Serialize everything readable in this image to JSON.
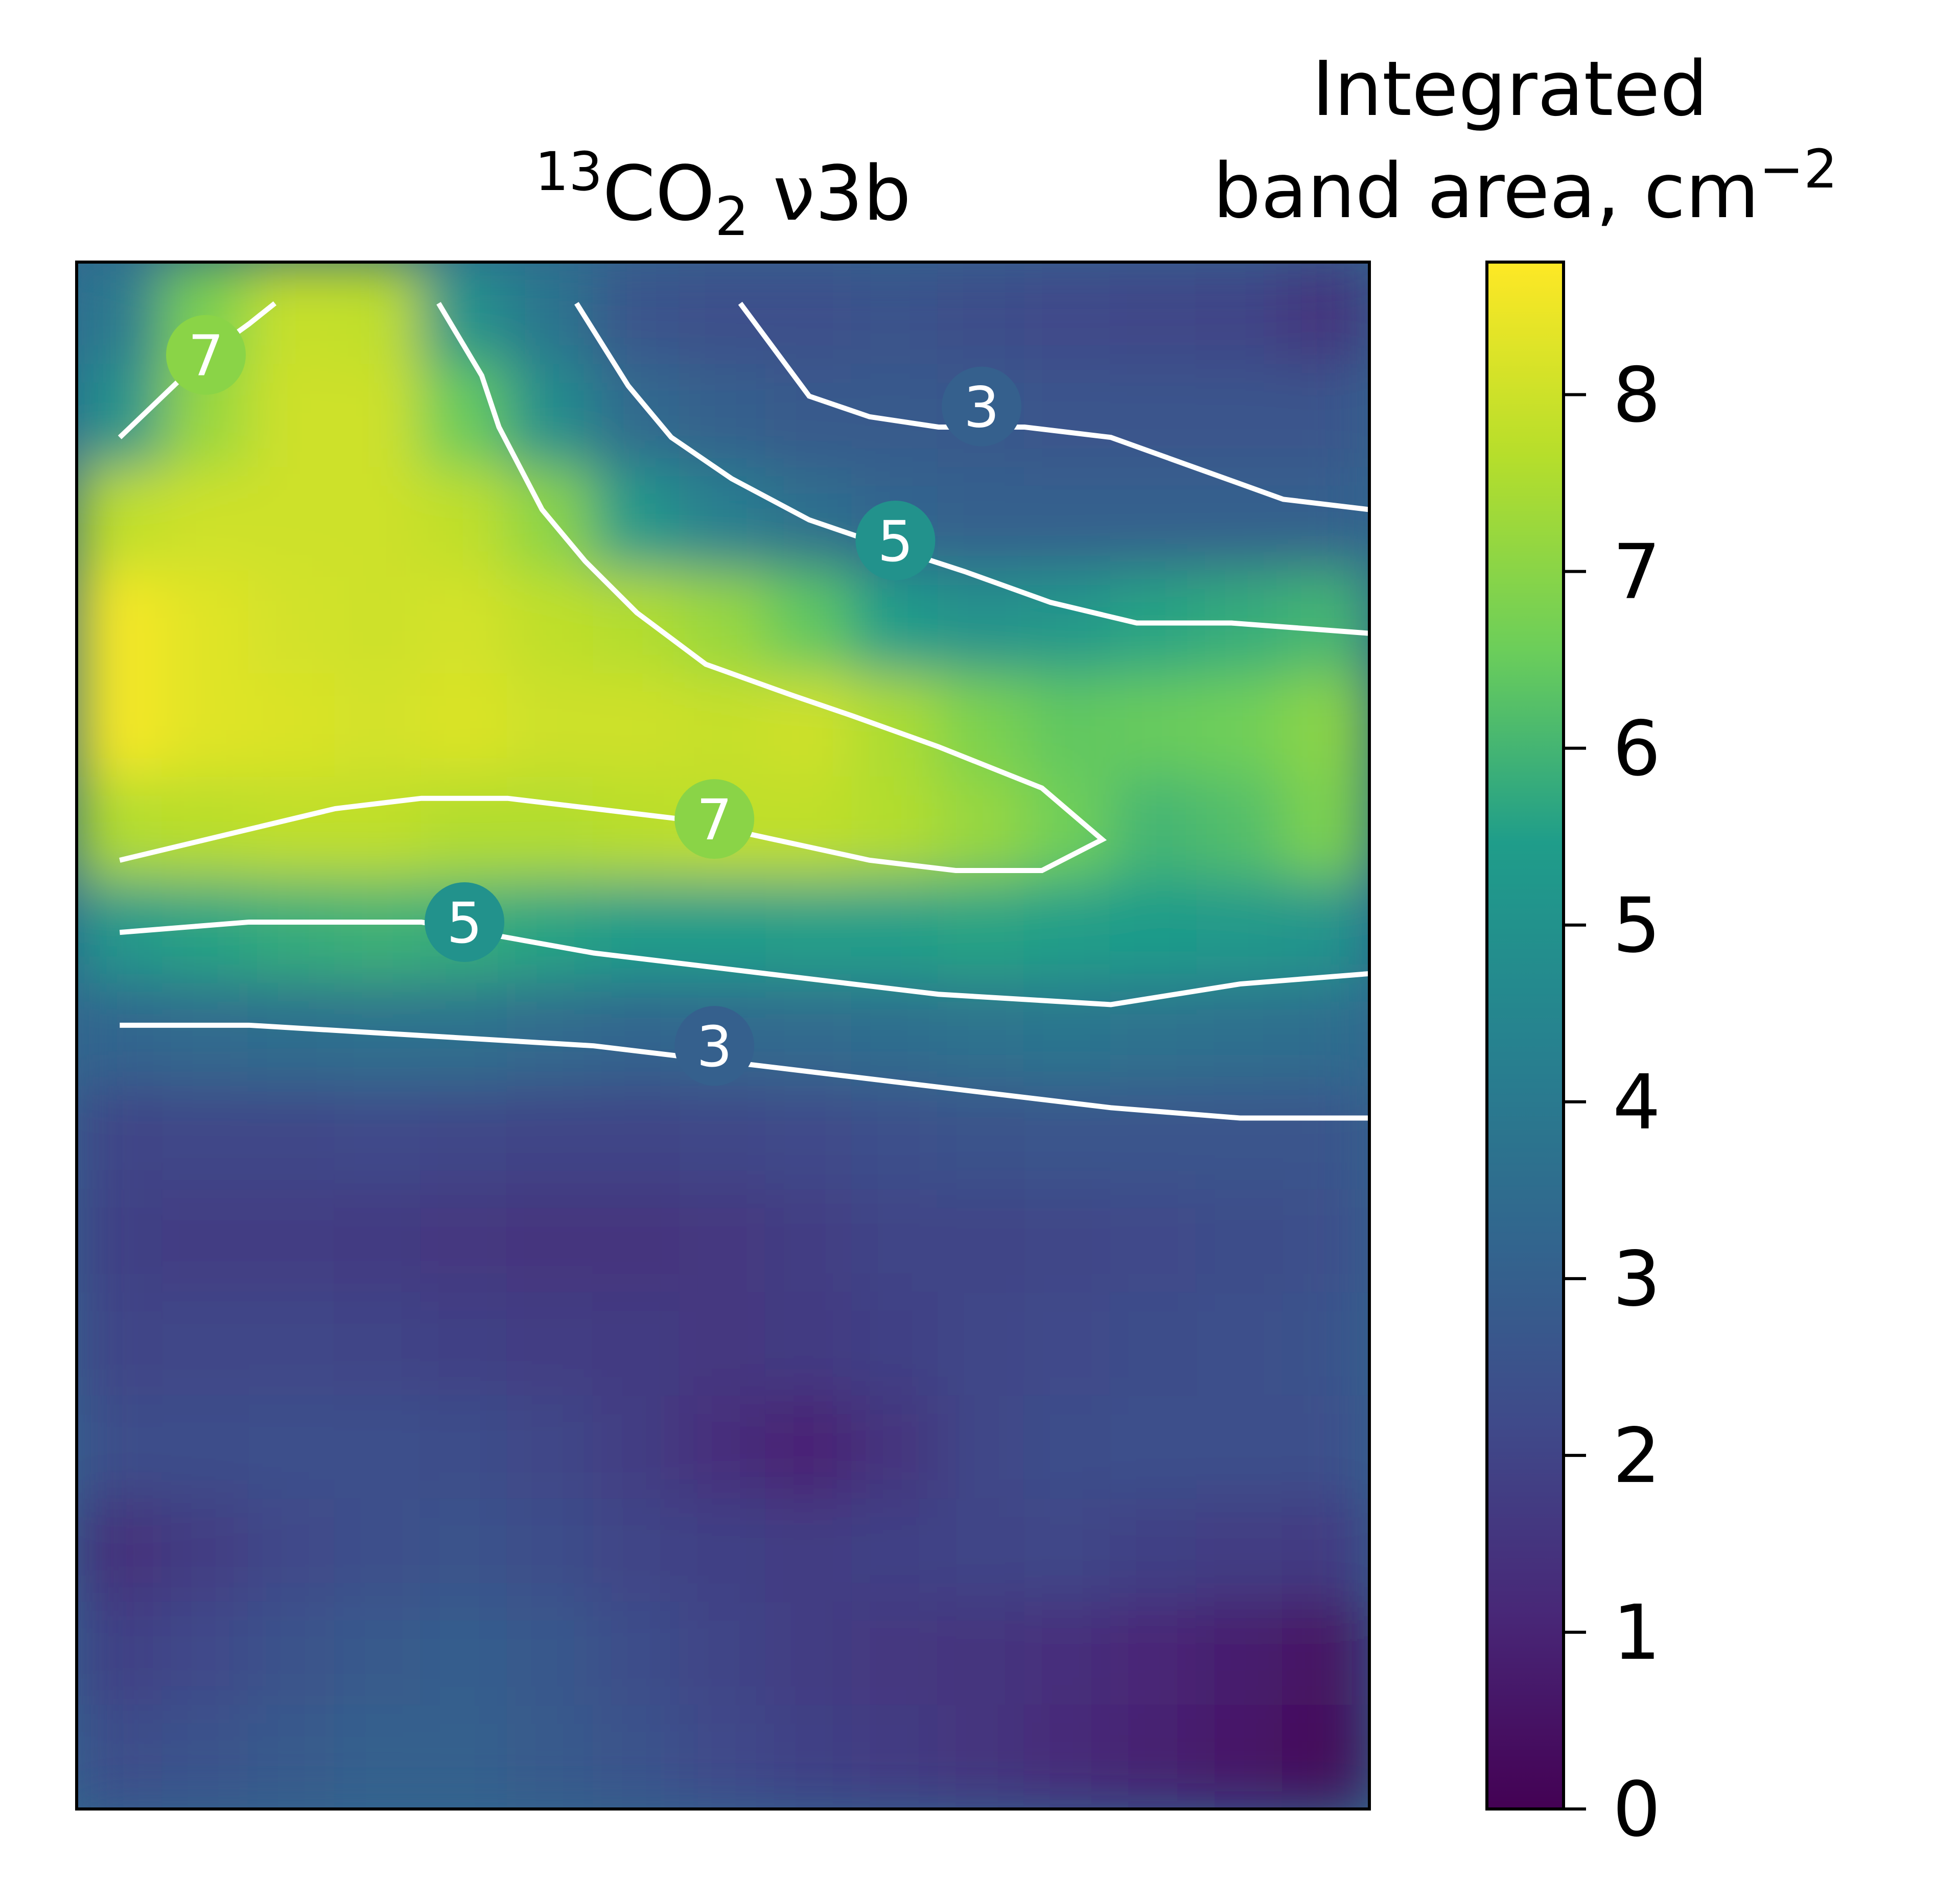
{
  "chart_data": {
    "type": "heatmap",
    "title": {
      "prefix": "",
      "superscript": "13",
      "main": "CO",
      "subscript": "2",
      "suffix": " ν3b"
    },
    "xlabel": "",
    "ylabel": "",
    "x_ticks": [],
    "y_ticks": [],
    "colormap": "viridis",
    "colormap_stops": [
      "#440154",
      "#482777",
      "#3f4a8a",
      "#31678e",
      "#26838f",
      "#1f9d8a",
      "#6cce5a",
      "#b6de2b",
      "#fee825"
    ],
    "clim": [
      0,
      8.75
    ],
    "hotspots_value_grid_note": "",
    "value_grid": [
      [
        4.0,
        6.8,
        7.9,
        7.8,
        5.0,
        3.8,
        2.6,
        2.4,
        2.4,
        2.5,
        2.3,
        2.2,
        2.1,
        2.0,
        1.5
      ],
      [
        5.0,
        7.2,
        8.0,
        8.0,
        6.5,
        4.8,
        3.4,
        3.0,
        2.8,
        2.8,
        2.7,
        2.6,
        2.6,
        2.6,
        2.6
      ],
      [
        7.8,
        8.0,
        8.0,
        8.0,
        7.8,
        7.0,
        5.2,
        4.2,
        3.6,
        3.2,
        3.0,
        3.0,
        3.0,
        3.0,
        3.0
      ],
      [
        8.6,
        8.3,
        8.1,
        8.0,
        8.1,
        7.8,
        7.6,
        7.2,
        6.4,
        5.4,
        5.0,
        5.2,
        5.6,
        5.8,
        6.0
      ],
      [
        8.6,
        8.3,
        8.2,
        8.1,
        8.2,
        8.0,
        8.0,
        7.9,
        8.0,
        7.5,
        6.8,
        6.4,
        6.5,
        6.6,
        7.0
      ],
      [
        7.6,
        7.7,
        7.8,
        7.8,
        7.6,
        7.6,
        7.7,
        7.8,
        7.8,
        7.6,
        7.2,
        6.6,
        6.0,
        6.2,
        6.8
      ],
      [
        5.2,
        5.6,
        5.8,
        5.9,
        5.8,
        5.6,
        5.4,
        5.4,
        5.5,
        5.5,
        5.6,
        5.5,
        5.4,
        5.3,
        5.1
      ],
      [
        3.2,
        3.4,
        3.5,
        3.6,
        3.6,
        3.4,
        3.2,
        3.3,
        3.4,
        3.5,
        3.7,
        3.8,
        3.7,
        3.6,
        3.5
      ],
      [
        2.0,
        2.1,
        2.1,
        2.2,
        2.1,
        2.0,
        2.0,
        2.1,
        2.2,
        2.4,
        2.5,
        2.6,
        2.6,
        2.6,
        2.6
      ],
      [
        1.9,
        1.8,
        1.8,
        1.7,
        1.6,
        1.5,
        1.5,
        1.6,
        1.8,
        2.0,
        2.0,
        2.1,
        2.2,
        2.3,
        2.4
      ],
      [
        2.0,
        2.1,
        2.1,
        2.0,
        1.9,
        1.8,
        1.7,
        1.6,
        1.7,
        1.9,
        2.1,
        2.2,
        2.3,
        2.4,
        2.5
      ],
      [
        2.3,
        2.3,
        2.4,
        2.4,
        2.3,
        2.1,
        1.8,
        1.3,
        1.0,
        1.5,
        2.1,
        2.3,
        2.4,
        2.4,
        2.4
      ],
      [
        1.4,
        1.8,
        2.2,
        2.4,
        2.5,
        2.3,
        2.0,
        1.9,
        1.8,
        1.9,
        2.0,
        2.1,
        1.9,
        1.8,
        1.7
      ],
      [
        1.9,
        2.2,
        2.5,
        2.8,
        2.9,
        2.7,
        2.3,
        2.0,
        1.8,
        1.6,
        1.5,
        1.3,
        1.1,
        0.8,
        0.5
      ],
      [
        2.3,
        2.5,
        2.8,
        3.0,
        3.0,
        2.8,
        2.5,
        2.2,
        1.9,
        1.7,
        1.5,
        1.2,
        0.9,
        0.6,
        0.2
      ]
    ],
    "contours": [
      {
        "level": "3",
        "label_pos": [
          10.5,
          1.4
        ],
        "points": [
          [
            7.7,
            0.4
          ],
          [
            8.5,
            1.3
          ],
          [
            9.2,
            1.5
          ],
          [
            10.0,
            1.6
          ],
          [
            11.0,
            1.6
          ],
          [
            12.0,
            1.7
          ],
          [
            13.0,
            2.0
          ],
          [
            14.0,
            2.3
          ],
          [
            15.0,
            2.4
          ]
        ]
      },
      {
        "level": "5",
        "label_pos": [
          9.5,
          2.7
        ],
        "points": [
          [
            5.8,
            0.4
          ],
          [
            6.4,
            1.2
          ],
          [
            6.9,
            1.7
          ],
          [
            7.6,
            2.1
          ],
          [
            8.5,
            2.5
          ],
          [
            9.2,
            2.7
          ],
          [
            10.3,
            3.0
          ],
          [
            11.3,
            3.3
          ],
          [
            12.3,
            3.5
          ],
          [
            13.4,
            3.5
          ],
          [
            15.0,
            3.6
          ]
        ]
      },
      {
        "level": "7",
        "label_pos": [
          1.5,
          0.9
        ],
        "points": [
          [
            0.5,
            1.7
          ],
          [
            1.0,
            1.3
          ],
          [
            1.5,
            0.9
          ],
          [
            2.0,
            0.6
          ],
          [
            2.3,
            0.4
          ]
        ]
      },
      {
        "level": "",
        "label_pos": null,
        "points": [
          [
            4.2,
            0.4
          ],
          [
            4.7,
            1.1
          ],
          [
            4.9,
            1.6
          ],
          [
            5.4,
            2.4
          ],
          [
            5.9,
            2.9
          ],
          [
            6.5,
            3.4
          ],
          [
            7.3,
            3.9
          ],
          [
            8.3,
            4.2
          ],
          [
            9.0,
            4.4
          ],
          [
            10.0,
            4.7
          ],
          [
            11.2,
            5.1
          ],
          [
            11.9,
            5.6
          ],
          [
            11.2,
            5.9
          ],
          [
            10.2,
            5.9
          ],
          [
            9.2,
            5.8
          ],
          [
            8.1,
            5.6
          ],
          [
            7.0,
            5.4
          ],
          [
            6.0,
            5.3
          ],
          [
            5.0,
            5.2
          ],
          [
            4.0,
            5.2
          ],
          [
            3.0,
            5.3
          ],
          [
            2.0,
            5.5
          ],
          [
            0.5,
            5.8
          ]
        ]
      },
      {
        "level": "7",
        "label_pos": [
          7.4,
          5.4
        ],
        "points": []
      },
      {
        "level": "5",
        "label_pos": [
          4.5,
          6.4
        ],
        "points": [
          [
            0.5,
            6.5
          ],
          [
            2.0,
            6.4
          ],
          [
            4.0,
            6.4
          ],
          [
            6.0,
            6.7
          ],
          [
            8.0,
            6.9
          ],
          [
            10.0,
            7.1
          ],
          [
            12.0,
            7.2
          ],
          [
            13.5,
            7.0
          ],
          [
            15.0,
            6.9
          ]
        ]
      },
      {
        "level": "3",
        "label_pos": [
          7.4,
          7.6
        ],
        "points": [
          [
            0.5,
            7.4
          ],
          [
            2.0,
            7.4
          ],
          [
            4.0,
            7.5
          ],
          [
            6.0,
            7.6
          ],
          [
            8.0,
            7.8
          ],
          [
            10.0,
            8.0
          ],
          [
            12.0,
            8.2
          ],
          [
            13.5,
            8.3
          ],
          [
            15.0,
            8.3
          ]
        ]
      }
    ],
    "colorbar": {
      "label_line1": "Integrated",
      "label_line2": "band area, cm",
      "label_superscript": "−2",
      "ticks": [
        "0",
        "1",
        "2",
        "3",
        "4",
        "5",
        "6",
        "7",
        "8"
      ],
      "tick_values": [
        0,
        1,
        2,
        3,
        4,
        5,
        6,
        7,
        8
      ],
      "range": [
        0,
        8.75
      ]
    }
  }
}
